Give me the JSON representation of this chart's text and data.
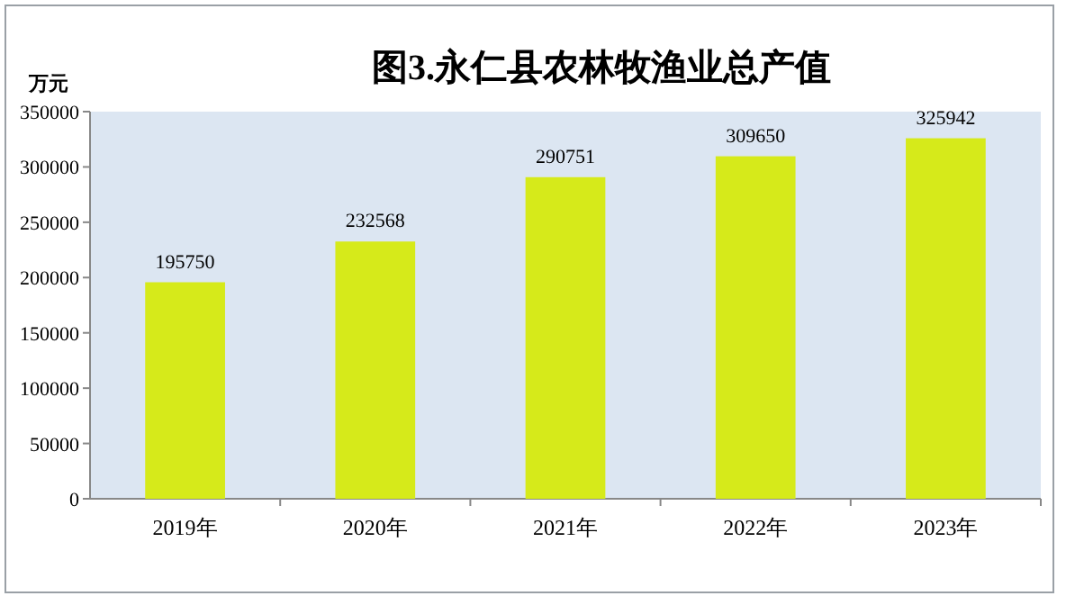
{
  "chart_data": {
    "type": "bar",
    "title": "图3.永仁县农林牧渔业总产值",
    "ylabel": "万元",
    "categories": [
      "2019年",
      "2020年",
      "2021年",
      "2022年",
      "2023年"
    ],
    "series": [
      {
        "color": "#d6ea1a",
        "values": [
          195750,
          232568,
          290751,
          309650,
          325942
        ]
      }
    ],
    "ylim": [
      0,
      350000
    ],
    "yticks": [
      0,
      50000,
      100000,
      150000,
      200000,
      250000,
      300000,
      350000
    ],
    "data_labels": true,
    "grid": false
  }
}
